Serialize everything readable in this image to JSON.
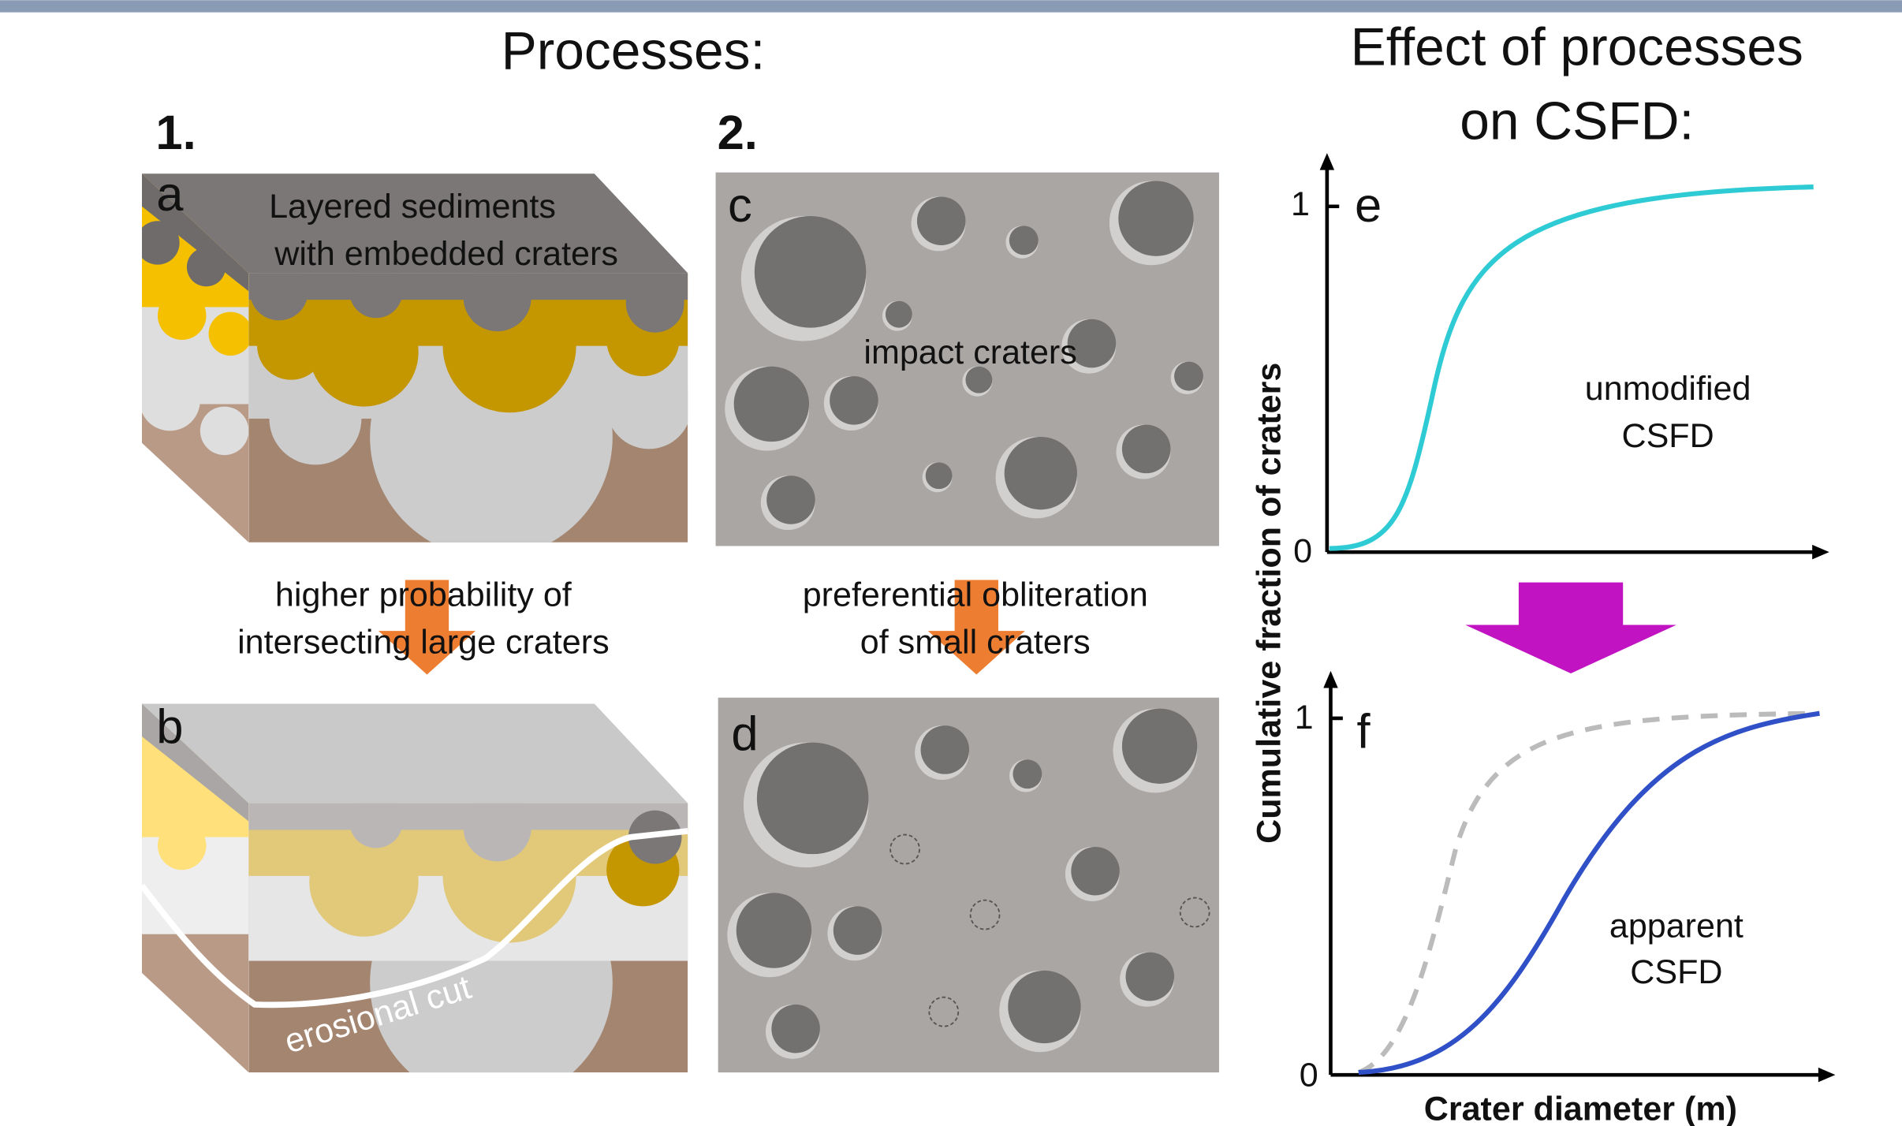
{
  "header": {
    "title": "Processes:",
    "effect_title": [
      "Effect of processes",
      "on CSFD:"
    ]
  },
  "columns": [
    "1.",
    "2."
  ],
  "panels": {
    "a": {
      "label": "a",
      "caption": [
        "Layered sediments",
        "with embedded craters"
      ]
    },
    "b": {
      "label": "b",
      "caption": "erosional cut"
    },
    "c": {
      "label": "c",
      "caption": "impact craters"
    },
    "d": {
      "label": "d"
    },
    "e": {
      "label": "e",
      "yticks": [
        "1",
        "0"
      ],
      "caption": [
        "unmodified",
        "CSFD"
      ]
    },
    "f": {
      "label": "f",
      "yticks": [
        "1",
        "0"
      ],
      "caption": [
        "apparent",
        "CSFD"
      ]
    }
  },
  "arrows": {
    "process1": [
      "higher probability of",
      "intersecting large craters"
    ],
    "process2": [
      "preferential obliteration",
      "of small craters"
    ]
  },
  "axes": {
    "ylabel": "Cumulative fraction of craters",
    "xlabel": "Crater diameter (m)"
  }
}
